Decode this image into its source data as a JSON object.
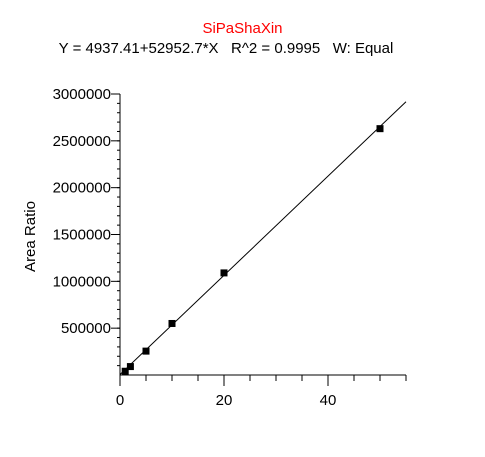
{
  "chart_data": {
    "type": "scatter",
    "title": "SiPaShaXin",
    "subtitle": "Y = 4937.41+52952.7*X   R^2 = 0.9995   W: Equal",
    "xlabel": "",
    "ylabel": "Area Ratio",
    "xlim": [
      0,
      55
    ],
    "ylim": [
      0,
      3000000
    ],
    "x_ticks": [
      0,
      20,
      40
    ],
    "y_ticks": [
      500000,
      1000000,
      1500000,
      2000000,
      2500000,
      3000000
    ],
    "grid": false,
    "colors": {
      "title": "#ff0000",
      "axis": "#000000",
      "fit_line": "#000000",
      "points": "#000000"
    },
    "fit_line": {
      "intercept": 4937.41,
      "slope": 52952.7,
      "x_range": [
        0,
        55
      ]
    },
    "series": [
      {
        "x": [
          1,
          2,
          5,
          10,
          20,
          50
        ],
        "y": [
          40000,
          90000,
          255000,
          550000,
          1090000,
          2630000
        ]
      }
    ]
  }
}
